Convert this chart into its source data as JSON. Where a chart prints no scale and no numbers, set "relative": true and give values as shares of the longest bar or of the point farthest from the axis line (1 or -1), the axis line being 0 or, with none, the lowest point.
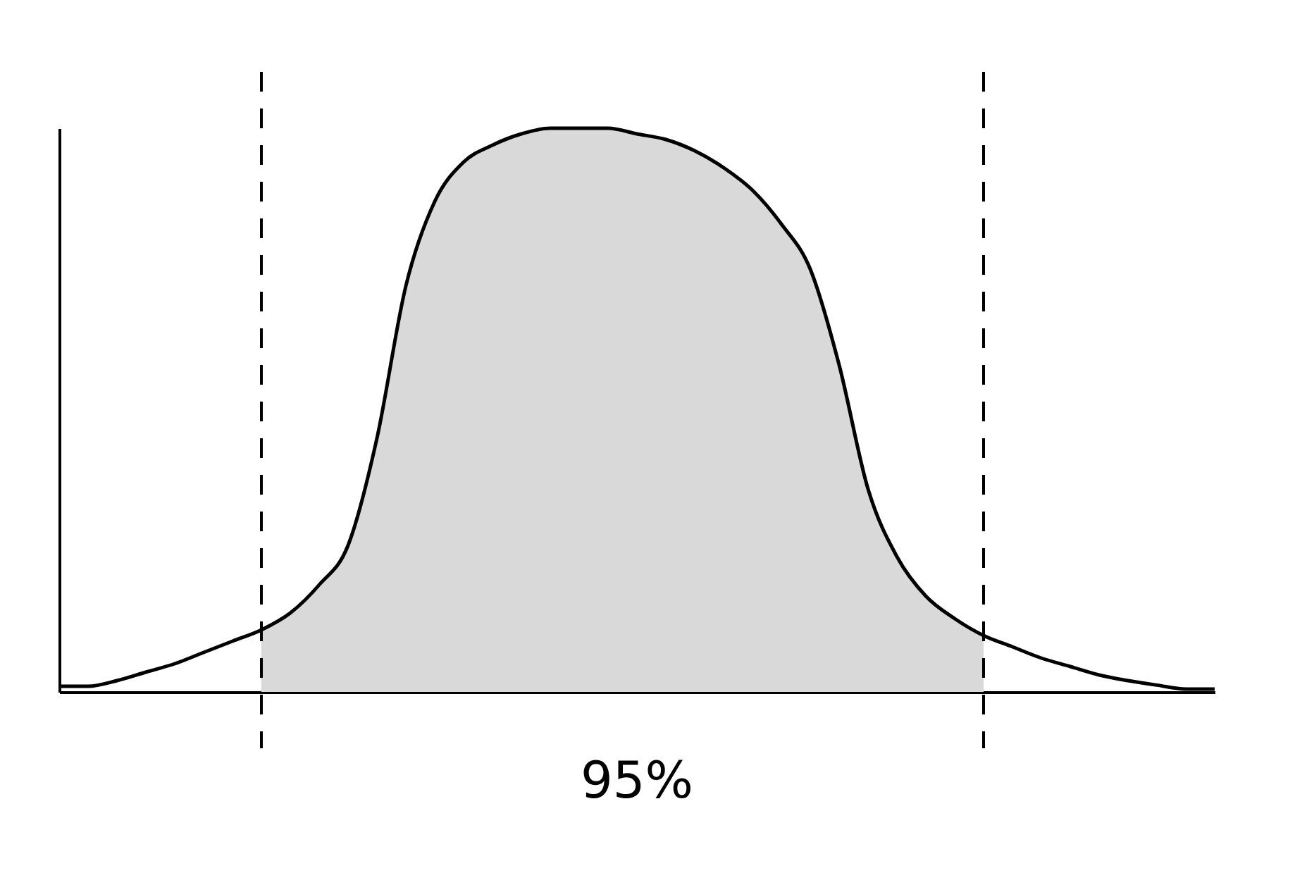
{
  "chart_data": {
    "type": "line",
    "relative": true,
    "grid": false,
    "marker": "none",
    "line_style": "solid",
    "categories": [
      null,
      null,
      null,
      null,
      null,
      null,
      null,
      null,
      null,
      null,
      null,
      null,
      null,
      null,
      null,
      null,
      null,
      null,
      null,
      null,
      null,
      null,
      null,
      null,
      null,
      null,
      null,
      null,
      null,
      null,
      null,
      null,
      null,
      null,
      null,
      null,
      null,
      null,
      null,
      null,
      null
    ],
    "series": [
      {
        "type": "area",
        "color": "#d9d9d9",
        "values": [
          null,
          null,
          null,
          null,
          null,
          null,
          null,
          0.11,
          0.14,
          0.19,
          0.26,
          0.45,
          0.72,
          0.87,
          0.94,
          0.97,
          0.99,
          1.0,
          1.0,
          1.0,
          0.99,
          0.98,
          0.96,
          0.93,
          0.89,
          0.83,
          0.75,
          0.58,
          0.36,
          0.24,
          0.17,
          0.13,
          0.1,
          null,
          null,
          null,
          null,
          null,
          null,
          null,
          null
        ]
      },
      {
        "color": "#000000",
        "values": [
          0.01,
          0.01,
          0.02,
          0.035,
          0.05,
          0.07,
          0.09,
          0.11,
          0.14,
          0.19,
          0.26,
          0.45,
          0.72,
          0.87,
          0.94,
          0.97,
          0.99,
          1.0,
          1.0,
          1.0,
          0.99,
          0.98,
          0.96,
          0.93,
          0.89,
          0.83,
          0.75,
          0.58,
          0.36,
          0.24,
          0.17,
          0.13,
          0.1,
          0.08,
          0.06,
          0.045,
          0.03,
          0.02,
          0.012,
          0.005,
          0.005
        ]
      }
    ],
    "annotations": [
      "95%"
    ]
  }
}
